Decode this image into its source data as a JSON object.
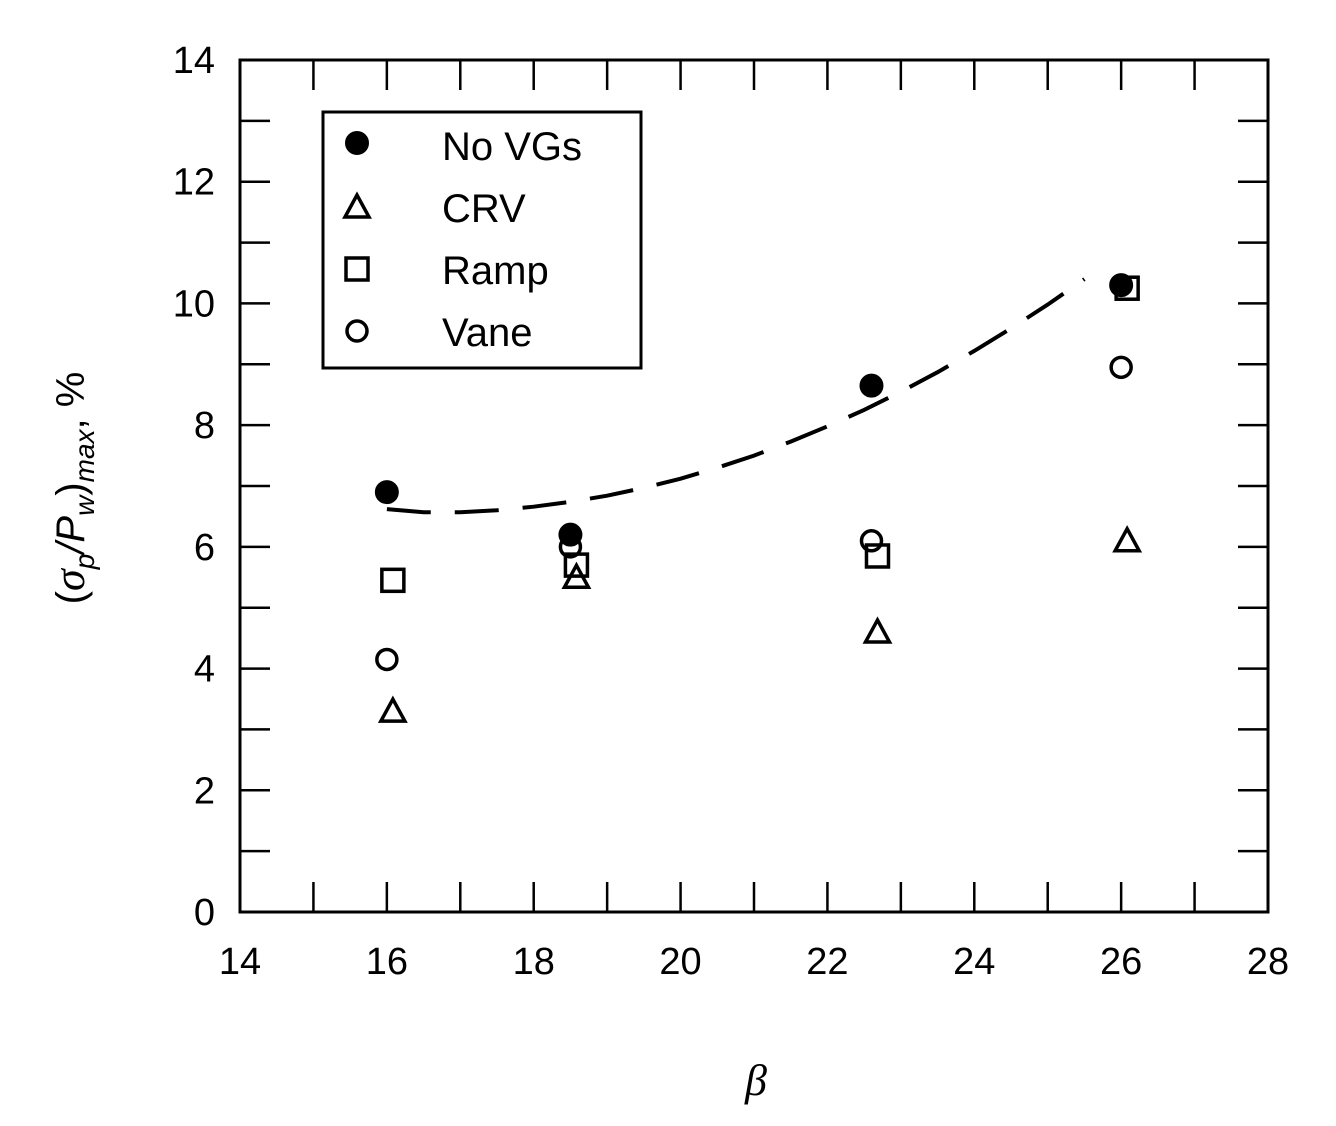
{
  "chart_data": {
    "type": "scatter",
    "xlabel": "β",
    "ylabel": {
      "open": "(",
      "sigma": "σ",
      "sub_p": "p",
      "slash": "/P",
      "sub_w": "w",
      "close": ")",
      "sub_max": "max",
      "unit": ", %"
    },
    "xlim": [
      14,
      28
    ],
    "ylim": [
      0,
      14
    ],
    "x_ticks": [
      14,
      16,
      18,
      20,
      22,
      24,
      26,
      28
    ],
    "y_ticks": [
      0,
      2,
      4,
      6,
      8,
      10,
      12,
      14
    ],
    "grid": false,
    "legend_position": "top-left",
    "series": [
      {
        "name": "No VGs",
        "marker": "filled-circle",
        "x": [
          16.0,
          18.5,
          22.6,
          26.0
        ],
        "y": [
          6.9,
          6.2,
          8.65,
          10.3
        ]
      },
      {
        "name": "CRV",
        "marker": "open-triangle",
        "x": [
          16.0,
          18.5,
          22.6,
          26.0
        ],
        "y": [
          3.3,
          5.5,
          4.6,
          6.1
        ]
      },
      {
        "name": "Ramp",
        "marker": "open-square",
        "x": [
          16.0,
          18.5,
          22.6,
          26.0
        ],
        "y": [
          5.45,
          5.7,
          5.85,
          10.25
        ]
      },
      {
        "name": "Vane",
        "marker": "open-circle",
        "x": [
          16.0,
          18.5,
          22.6,
          26.0
        ],
        "y": [
          4.15,
          6.0,
          6.1,
          8.95
        ]
      }
    ],
    "fit_curve": {
      "style": "dashed",
      "x": [
        16.0,
        16.5,
        17.0,
        17.5,
        18.0,
        18.5,
        19.0,
        19.5,
        20.0,
        20.5,
        21.0,
        21.5,
        22.0,
        22.5,
        23.0,
        23.5,
        24.0,
        24.5,
        25.0,
        25.5,
        26.0
      ],
      "y": [
        6.62,
        6.57,
        6.57,
        6.6,
        6.66,
        6.74,
        6.84,
        6.97,
        7.12,
        7.3,
        7.5,
        7.73,
        7.98,
        8.25,
        8.55,
        8.87,
        9.22,
        9.59,
        9.98,
        10.4,
        10.35
      ]
    }
  }
}
